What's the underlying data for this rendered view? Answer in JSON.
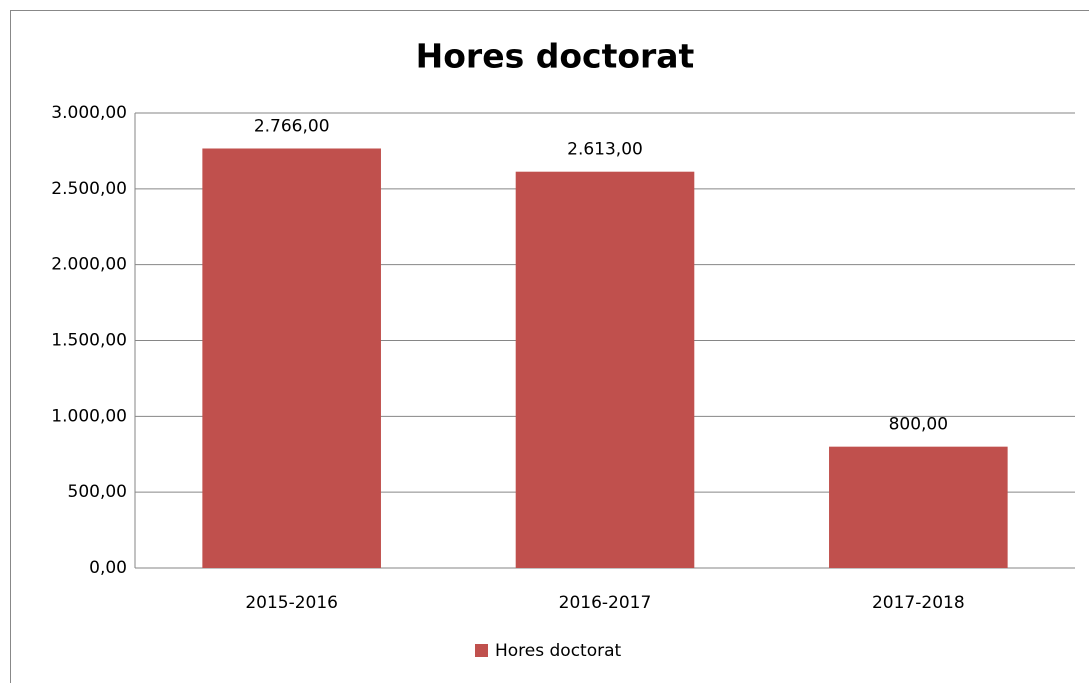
{
  "chart_data": {
    "type": "bar",
    "title": "Hores doctorat",
    "categories": [
      "2015-2016",
      "2016-2017",
      "2017-2018"
    ],
    "series": [
      {
        "name": "Hores doctorat",
        "color": "#c0504d",
        "values": [
          2766,
          2613,
          800
        ],
        "value_labels": [
          "2.766,00",
          "2.613,00",
          "800,00"
        ]
      }
    ],
    "ylim": [
      0,
      3000
    ],
    "yticks": [
      {
        "value": 0,
        "label": "0,00"
      },
      {
        "value": 500,
        "label": "500,00"
      },
      {
        "value": 1000,
        "label": "1.000,00"
      },
      {
        "value": 1500,
        "label": "1.500,00"
      },
      {
        "value": 2000,
        "label": "2.000,00"
      },
      {
        "value": 2500,
        "label": "2.500,00"
      },
      {
        "value": 3000,
        "label": "3.000,00"
      }
    ],
    "grid": true,
    "legend": "bottom"
  }
}
